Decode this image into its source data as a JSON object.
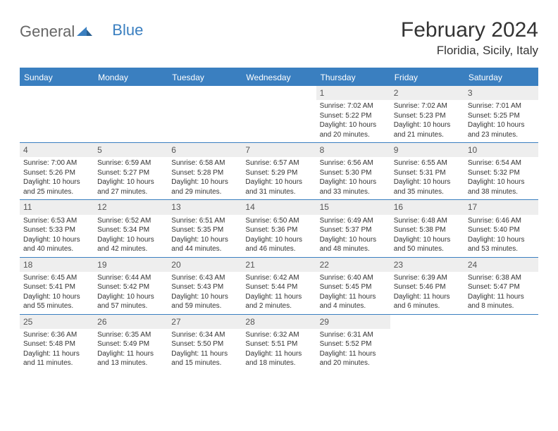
{
  "logo": {
    "part1": "General",
    "part2": "Blue"
  },
  "title": "February 2024",
  "location": "Floridia, Sicily, Italy",
  "colors": {
    "accent": "#3a7fc0",
    "header_text": "#ffffff",
    "daynum_bg": "#eeeeee",
    "text": "#333333",
    "logo_gray": "#666666"
  },
  "day_headers": [
    "Sunday",
    "Monday",
    "Tuesday",
    "Wednesday",
    "Thursday",
    "Friday",
    "Saturday"
  ],
  "weeks": [
    [
      {
        "empty": true
      },
      {
        "empty": true
      },
      {
        "empty": true
      },
      {
        "empty": true
      },
      {
        "day": "1",
        "sunrise": "Sunrise: 7:02 AM",
        "sunset": "Sunset: 5:22 PM",
        "daylight": "Daylight: 10 hours and 20 minutes."
      },
      {
        "day": "2",
        "sunrise": "Sunrise: 7:02 AM",
        "sunset": "Sunset: 5:23 PM",
        "daylight": "Daylight: 10 hours and 21 minutes."
      },
      {
        "day": "3",
        "sunrise": "Sunrise: 7:01 AM",
        "sunset": "Sunset: 5:25 PM",
        "daylight": "Daylight: 10 hours and 23 minutes."
      }
    ],
    [
      {
        "day": "4",
        "sunrise": "Sunrise: 7:00 AM",
        "sunset": "Sunset: 5:26 PM",
        "daylight": "Daylight: 10 hours and 25 minutes."
      },
      {
        "day": "5",
        "sunrise": "Sunrise: 6:59 AM",
        "sunset": "Sunset: 5:27 PM",
        "daylight": "Daylight: 10 hours and 27 minutes."
      },
      {
        "day": "6",
        "sunrise": "Sunrise: 6:58 AM",
        "sunset": "Sunset: 5:28 PM",
        "daylight": "Daylight: 10 hours and 29 minutes."
      },
      {
        "day": "7",
        "sunrise": "Sunrise: 6:57 AM",
        "sunset": "Sunset: 5:29 PM",
        "daylight": "Daylight: 10 hours and 31 minutes."
      },
      {
        "day": "8",
        "sunrise": "Sunrise: 6:56 AM",
        "sunset": "Sunset: 5:30 PM",
        "daylight": "Daylight: 10 hours and 33 minutes."
      },
      {
        "day": "9",
        "sunrise": "Sunrise: 6:55 AM",
        "sunset": "Sunset: 5:31 PM",
        "daylight": "Daylight: 10 hours and 35 minutes."
      },
      {
        "day": "10",
        "sunrise": "Sunrise: 6:54 AM",
        "sunset": "Sunset: 5:32 PM",
        "daylight": "Daylight: 10 hours and 38 minutes."
      }
    ],
    [
      {
        "day": "11",
        "sunrise": "Sunrise: 6:53 AM",
        "sunset": "Sunset: 5:33 PM",
        "daylight": "Daylight: 10 hours and 40 minutes."
      },
      {
        "day": "12",
        "sunrise": "Sunrise: 6:52 AM",
        "sunset": "Sunset: 5:34 PM",
        "daylight": "Daylight: 10 hours and 42 minutes."
      },
      {
        "day": "13",
        "sunrise": "Sunrise: 6:51 AM",
        "sunset": "Sunset: 5:35 PM",
        "daylight": "Daylight: 10 hours and 44 minutes."
      },
      {
        "day": "14",
        "sunrise": "Sunrise: 6:50 AM",
        "sunset": "Sunset: 5:36 PM",
        "daylight": "Daylight: 10 hours and 46 minutes."
      },
      {
        "day": "15",
        "sunrise": "Sunrise: 6:49 AM",
        "sunset": "Sunset: 5:37 PM",
        "daylight": "Daylight: 10 hours and 48 minutes."
      },
      {
        "day": "16",
        "sunrise": "Sunrise: 6:48 AM",
        "sunset": "Sunset: 5:38 PM",
        "daylight": "Daylight: 10 hours and 50 minutes."
      },
      {
        "day": "17",
        "sunrise": "Sunrise: 6:46 AM",
        "sunset": "Sunset: 5:40 PM",
        "daylight": "Daylight: 10 hours and 53 minutes."
      }
    ],
    [
      {
        "day": "18",
        "sunrise": "Sunrise: 6:45 AM",
        "sunset": "Sunset: 5:41 PM",
        "daylight": "Daylight: 10 hours and 55 minutes."
      },
      {
        "day": "19",
        "sunrise": "Sunrise: 6:44 AM",
        "sunset": "Sunset: 5:42 PM",
        "daylight": "Daylight: 10 hours and 57 minutes."
      },
      {
        "day": "20",
        "sunrise": "Sunrise: 6:43 AM",
        "sunset": "Sunset: 5:43 PM",
        "daylight": "Daylight: 10 hours and 59 minutes."
      },
      {
        "day": "21",
        "sunrise": "Sunrise: 6:42 AM",
        "sunset": "Sunset: 5:44 PM",
        "daylight": "Daylight: 11 hours and 2 minutes."
      },
      {
        "day": "22",
        "sunrise": "Sunrise: 6:40 AM",
        "sunset": "Sunset: 5:45 PM",
        "daylight": "Daylight: 11 hours and 4 minutes."
      },
      {
        "day": "23",
        "sunrise": "Sunrise: 6:39 AM",
        "sunset": "Sunset: 5:46 PM",
        "daylight": "Daylight: 11 hours and 6 minutes."
      },
      {
        "day": "24",
        "sunrise": "Sunrise: 6:38 AM",
        "sunset": "Sunset: 5:47 PM",
        "daylight": "Daylight: 11 hours and 8 minutes."
      }
    ],
    [
      {
        "day": "25",
        "sunrise": "Sunrise: 6:36 AM",
        "sunset": "Sunset: 5:48 PM",
        "daylight": "Daylight: 11 hours and 11 minutes."
      },
      {
        "day": "26",
        "sunrise": "Sunrise: 6:35 AM",
        "sunset": "Sunset: 5:49 PM",
        "daylight": "Daylight: 11 hours and 13 minutes."
      },
      {
        "day": "27",
        "sunrise": "Sunrise: 6:34 AM",
        "sunset": "Sunset: 5:50 PM",
        "daylight": "Daylight: 11 hours and 15 minutes."
      },
      {
        "day": "28",
        "sunrise": "Sunrise: 6:32 AM",
        "sunset": "Sunset: 5:51 PM",
        "daylight": "Daylight: 11 hours and 18 minutes."
      },
      {
        "day": "29",
        "sunrise": "Sunrise: 6:31 AM",
        "sunset": "Sunset: 5:52 PM",
        "daylight": "Daylight: 11 hours and 20 minutes."
      },
      {
        "empty": true
      },
      {
        "empty": true
      }
    ]
  ]
}
